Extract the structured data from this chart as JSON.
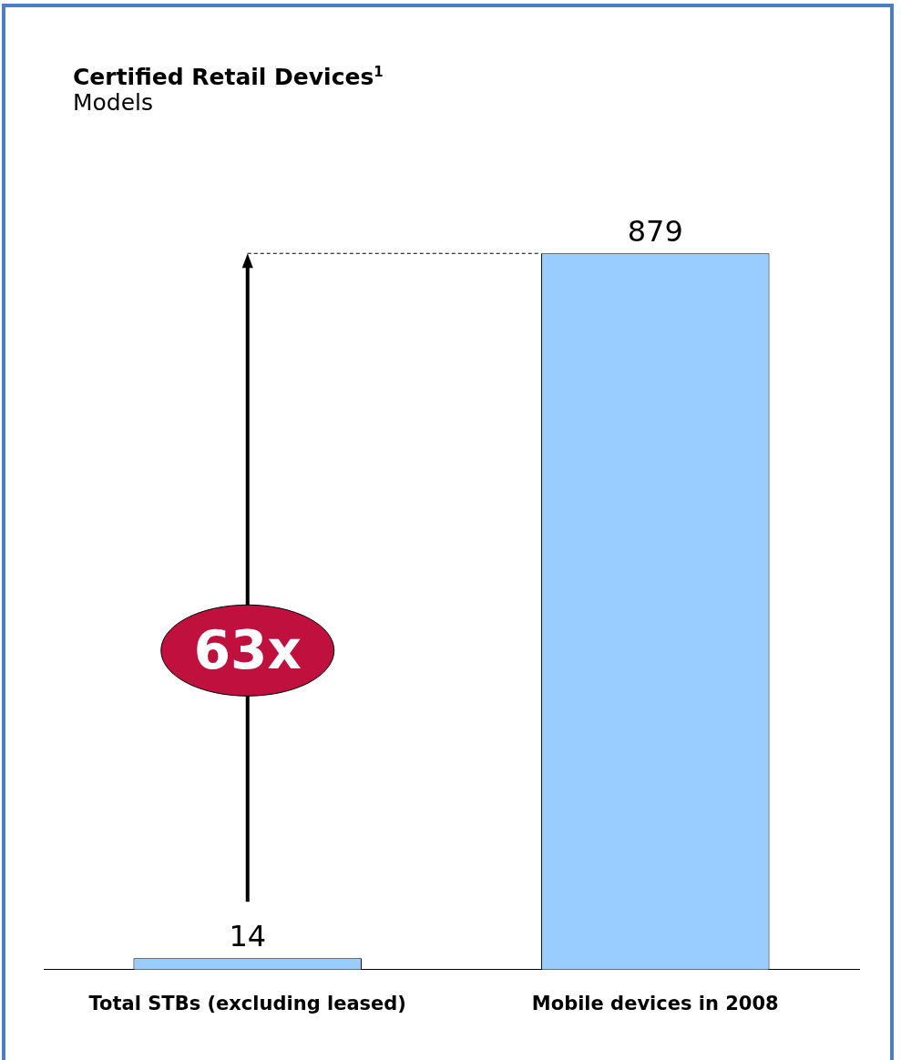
{
  "chart_data": {
    "type": "bar",
    "title": "Certified Retail Devices$^{1}$",
    "subtitle": "Models",
    "categories": [
      "Total STBs (excluding leased)",
      "Mobile devices in 2008"
    ],
    "values": [
      14,
      879
    ],
    "color": "#99ccff",
    "data_labels": true,
    "legend": false,
    "annotations": [
      "63x"
    ]
  }
}
